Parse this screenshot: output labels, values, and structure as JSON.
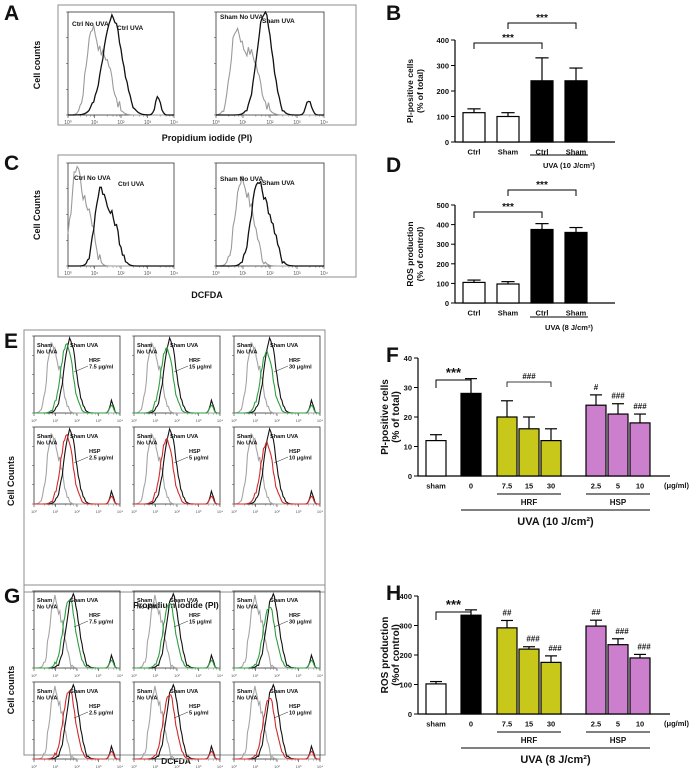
{
  "figure": {
    "colors": {
      "black": "#000000",
      "white": "#ffffff",
      "hrf_bar": "#c8c81a",
      "hsp_bar": "#cc7fcc",
      "green_curve": "#2e9e3e",
      "red_curve": "#d22a2a",
      "gray_curve": "#9a9a9a",
      "frame": "#8c8c8c"
    },
    "panels": {
      "A": {
        "label": "A",
        "ylabel": "Cell counts",
        "xlabel": "Propidium iodide (PI)",
        "hist1": {
          "ctrl_label": "Ctrl No UVA",
          "uva_label": "Ctrl UVA"
        },
        "hist2": {
          "ctrl_label": "Sham No UVA",
          "uva_label": "Sham UVA"
        }
      },
      "C": {
        "label": "C",
        "ylabel": "Cell Counts",
        "xlabel": "DCFDA",
        "hist1": {
          "ctrl_label": "Ctrl No UVA",
          "uva_label": "Ctrl UVA"
        },
        "hist2": {
          "ctrl_label": "Sham No UVA",
          "uva_label": "Sham UVA"
        }
      },
      "E": {
        "label": "E",
        "ylabel": "Cell Counts",
        "xlabel": "Propidium iodide (PI)",
        "cells": [
          {
            "no": "Sham No UVA",
            "uva": "Sham UVA",
            "trt": "HRF",
            "dose": "7.5 μg/ml"
          },
          {
            "no": "Sham No UVA",
            "uva": "Sham UVA",
            "trt": "HRF",
            "dose": "15 μg/ml"
          },
          {
            "no": "Sham No UVA",
            "uva": "Sham UVA",
            "trt": "HRF",
            "dose": "30 μg/ml"
          },
          {
            "no": "Sham No UVA",
            "uva": "Sham UVA",
            "trt": "HSP",
            "dose": "2.5 μg/ml"
          },
          {
            "no": "Sham No UVA",
            "uva": "Sham UVA",
            "trt": "HSP",
            "dose": "5 μg/ml"
          },
          {
            "no": "Sham No UVA",
            "uva": "Sham UVA",
            "trt": "HSP",
            "dose": "10 μg/ml"
          }
        ]
      },
      "G": {
        "label": "G",
        "ylabel": "Cell counts",
        "xlabel": "DCFDA",
        "cells": [
          {
            "no": "Sham No UVA",
            "uva": "Sham UVA",
            "trt": "HRF",
            "dose": "7.5 μg/ml"
          },
          {
            "no": "Sham No UVA",
            "uva": "Sham UVA",
            "trt": "HRF",
            "dose": "15 μg/ml"
          },
          {
            "no": "Sham No UVA",
            "uva": "Sham UVA",
            "trt": "HRF",
            "dose": "30 μg/ml"
          },
          {
            "no": "Sham No UVA",
            "uva": "Sham UVA",
            "trt": "HSP",
            "dose": "2.5 μg/ml"
          },
          {
            "no": "Sham No UVA",
            "uva": "Sham UVA",
            "trt": "HSP",
            "dose": "5 μg/ml"
          },
          {
            "no": "Sham No UVA",
            "uva": "Sham UVA",
            "trt": "HSP",
            "dose": "10 μg/ml"
          }
        ]
      }
    }
  },
  "chart_data": [
    {
      "id": "B",
      "type": "bar",
      "label": "B",
      "ylabel": "PI-positive cells\n(% of total)",
      "categories": [
        "Ctrl",
        "Sham",
        "Ctrl",
        "Sham"
      ],
      "values": [
        115,
        100,
        240,
        240
      ],
      "errors": [
        15,
        15,
        90,
        50
      ],
      "fills": [
        "white",
        "white",
        "black",
        "black"
      ],
      "ylim": [
        0,
        400
      ],
      "yticks": [
        0,
        100,
        200,
        300,
        400
      ],
      "group_label": "UVA (10 J/cm²)",
      "sig": [
        {
          "from": 0,
          "to": 2,
          "text": "***"
        },
        {
          "from": 1,
          "to": 3,
          "text": "***"
        }
      ]
    },
    {
      "id": "D",
      "type": "bar",
      "label": "D",
      "ylabel": "ROS production\n(% of control)",
      "categories": [
        "Ctrl",
        "Sham",
        "Ctrl",
        "Sham"
      ],
      "values": [
        105,
        97,
        375,
        360
      ],
      "errors": [
        12,
        12,
        30,
        25
      ],
      "fills": [
        "white",
        "white",
        "black",
        "black"
      ],
      "ylim": [
        0,
        500
      ],
      "yticks": [
        0,
        100,
        200,
        300,
        400,
        500
      ],
      "group_label": "UVA (8 J/cm²)",
      "sig": [
        {
          "from": 0,
          "to": 2,
          "text": "***"
        },
        {
          "from": 1,
          "to": 3,
          "text": "***"
        }
      ]
    },
    {
      "id": "F",
      "type": "bar",
      "label": "F",
      "ylabel": "PI-positive cells\n(% of total)",
      "categories": [
        "sham",
        "0",
        "7.5",
        "15",
        "30",
        "2.5",
        "5",
        "10"
      ],
      "values": [
        12,
        28,
        20,
        16,
        12,
        24,
        21,
        18
      ],
      "errors": [
        2,
        5,
        5.5,
        4,
        4,
        3.5,
        3.5,
        3
      ],
      "fills": [
        "white",
        "black",
        "hrf",
        "hrf",
        "hrf",
        "hsp",
        "hsp",
        "hsp"
      ],
      "ylim": [
        0,
        40
      ],
      "yticks": [
        0,
        10,
        20,
        30,
        40
      ],
      "unit_label": "(μg/ml)",
      "groups": [
        {
          "name": "HRF",
          "from": 2,
          "to": 4
        },
        {
          "name": "HSP",
          "from": 5,
          "to": 7
        }
      ],
      "treatment_label": "UVA (10 J/cm²)",
      "sig": [
        {
          "from": 0,
          "to": 1,
          "text": "***"
        }
      ],
      "group_marks": [
        {
          "from": 2,
          "to": 4,
          "text": "###"
        }
      ],
      "bar_marks": [
        {
          "index": 5,
          "text": "#"
        },
        {
          "index": 6,
          "text": "###"
        },
        {
          "index": 7,
          "text": "###"
        }
      ]
    },
    {
      "id": "H",
      "type": "bar",
      "label": "H",
      "ylabel": "ROS production\n(%of control)",
      "categories": [
        "sham",
        "0",
        "7.5",
        "15",
        "30",
        "2.5",
        "5",
        "10"
      ],
      "values": [
        102,
        335,
        292,
        220,
        175,
        298,
        235,
        190
      ],
      "errors": [
        8,
        18,
        25,
        8,
        22,
        20,
        20,
        12
      ],
      "fills": [
        "white",
        "black",
        "hrf",
        "hrf",
        "hrf",
        "hsp",
        "hsp",
        "hsp"
      ],
      "ylim": [
        0,
        400
      ],
      "yticks": [
        0,
        100,
        200,
        300,
        400
      ],
      "unit_label": "(μg/ml)",
      "groups": [
        {
          "name": "HRF",
          "from": 2,
          "to": 4
        },
        {
          "name": "HSP",
          "from": 5,
          "to": 7
        }
      ],
      "treatment_label": "UVA (8 J/cm²)",
      "sig": [
        {
          "from": 0,
          "to": 1,
          "text": "***"
        }
      ],
      "bar_marks": [
        {
          "index": 2,
          "text": "##"
        },
        {
          "index": 3,
          "text": "###"
        },
        {
          "index": 4,
          "text": "###"
        },
        {
          "index": 5,
          "text": "##"
        },
        {
          "index": 6,
          "text": "###"
        },
        {
          "index": 7,
          "text": "###"
        }
      ]
    }
  ]
}
